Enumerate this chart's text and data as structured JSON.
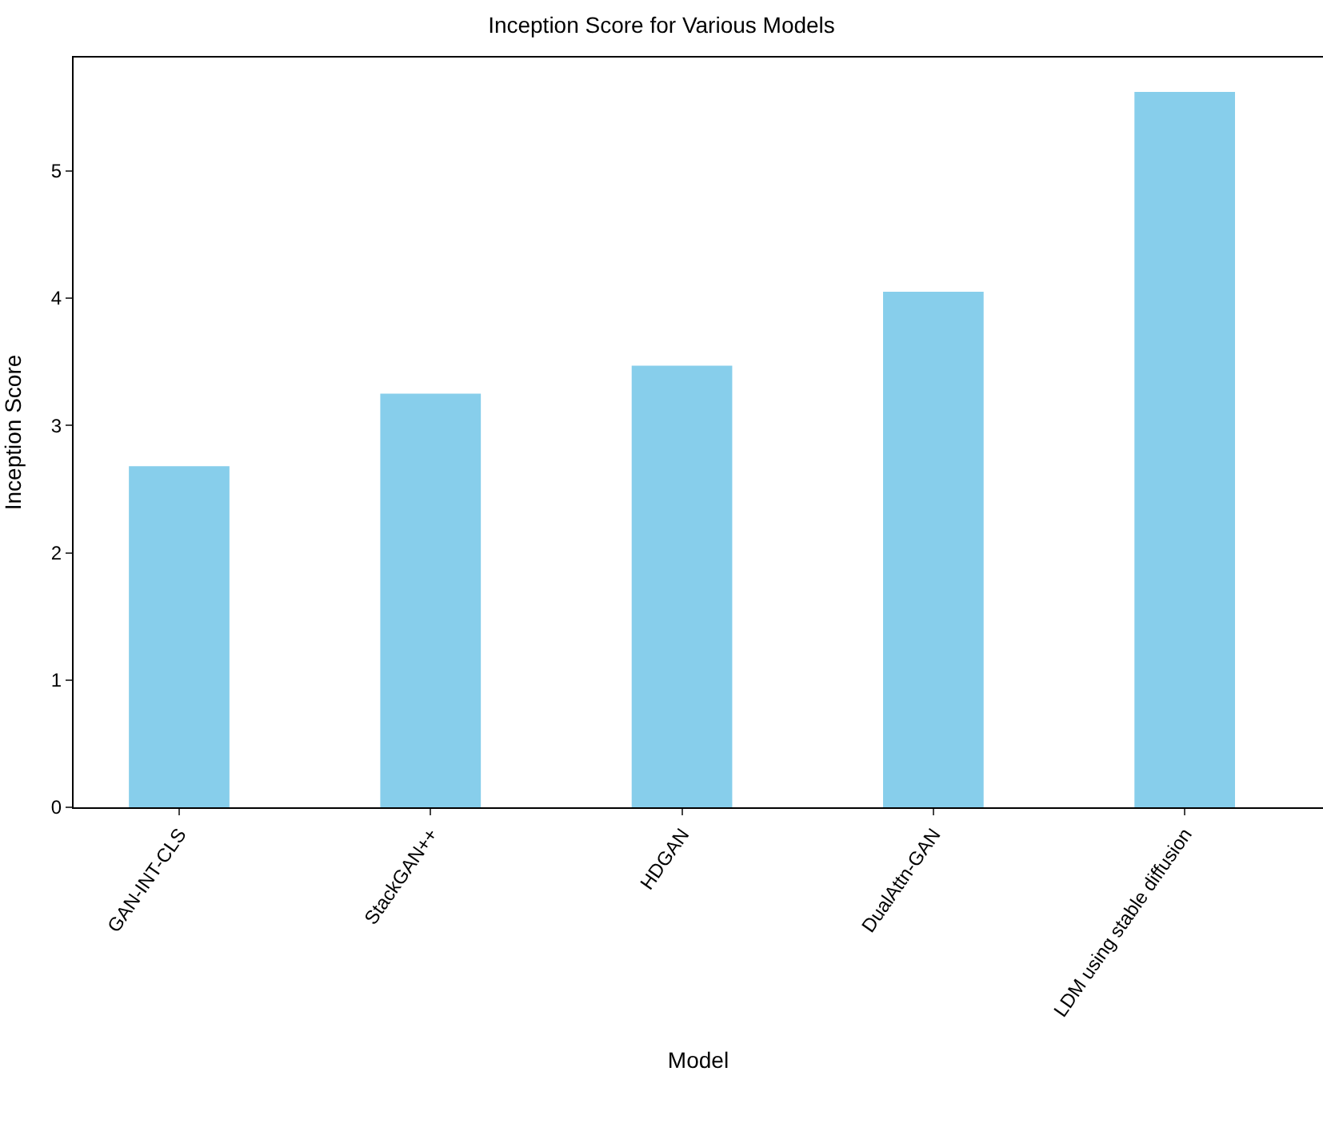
{
  "chart_data": {
    "type": "bar",
    "title": "Inception Score for Various Models",
    "xlabel": "Model",
    "ylabel": "Inception Score",
    "categories": [
      "GAN-INT-CLS",
      "StackGAN++",
      "HDGAN",
      "DualAttn-GAN",
      "LDM using stable diffusion"
    ],
    "values": [
      2.68,
      3.25,
      3.47,
      4.05,
      5.62
    ],
    "color": "#87ceeb",
    "ylim": [
      0,
      5.89
    ],
    "yticks": [
      0,
      1,
      2,
      3,
      4,
      5
    ]
  }
}
